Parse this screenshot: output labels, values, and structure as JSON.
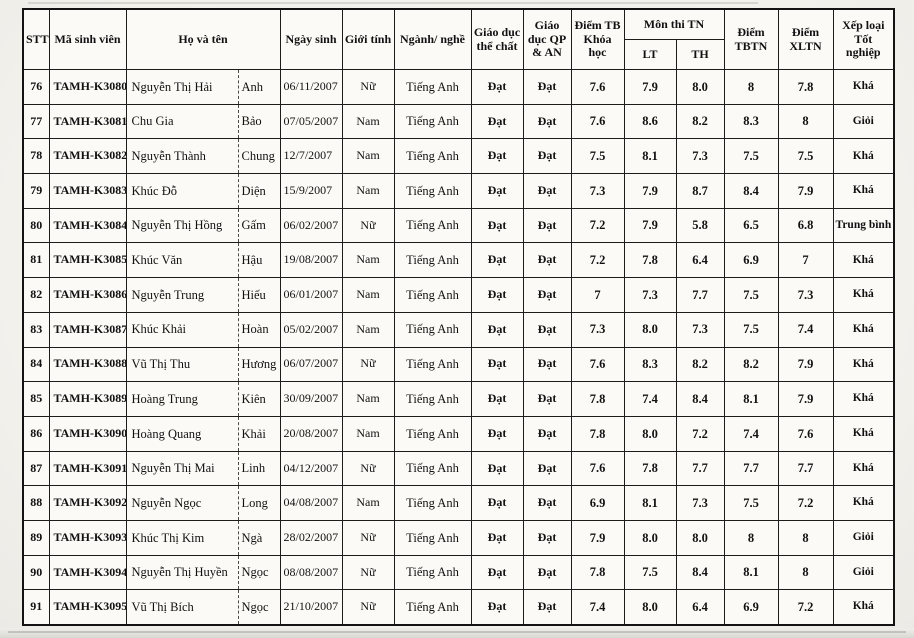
{
  "table": {
    "headers": {
      "stt": "STT",
      "ma_sinh_vien": "Mã sinh viên",
      "ho_va_ten": "Họ và tên",
      "ngay_sinh": "Ngày sinh",
      "gioi_tinh": "Giới tính",
      "nganh_nghe": "Ngành/ nghề",
      "giao_duc_the_chat": "Giáo dục thể chất",
      "giao_duc_qp_an": "Giáo dục QP & AN",
      "diem_tb_khoa_hoc": "Điểm TB Khóa học",
      "mon_thi_tn": "Môn thi TN",
      "lt": "LT",
      "th": "TH",
      "diem_tbtn": "Điểm TBTN",
      "diem_xltn": "Điểm XLTN",
      "xep_loai_tot_nghiep": "Xếp loại Tốt nghiệp"
    },
    "rows": [
      {
        "stt": "76",
        "code": "TAMH-K3080",
        "family": "Nguyễn Thị Hải",
        "given": "Anh",
        "dob": "06/11/2007",
        "gender": "Nữ",
        "major": "Tiếng Anh",
        "pe": "Đạt",
        "defense": "Đạt",
        "gpa": "7.6",
        "lt": "7.9",
        "th": "8.0",
        "tbtn": "8",
        "xltn": "7.8",
        "rank": "Khá"
      },
      {
        "stt": "77",
        "code": "TAMH-K3081",
        "family": "Chu Gia",
        "given": "Bảo",
        "dob": "07/05/2007",
        "gender": "Nam",
        "major": "Tiếng Anh",
        "pe": "Đạt",
        "defense": "Đạt",
        "gpa": "7.6",
        "lt": "8.6",
        "th": "8.2",
        "tbtn": "8.3",
        "xltn": "8",
        "rank": "Giỏi"
      },
      {
        "stt": "78",
        "code": "TAMH-K3082",
        "family": "Nguyễn Thành",
        "given": "Chung",
        "dob": "12/7/2007",
        "gender": "Nam",
        "major": "Tiếng Anh",
        "pe": "Đạt",
        "defense": "Đạt",
        "gpa": "7.5",
        "lt": "8.1",
        "th": "7.3",
        "tbtn": "7.5",
        "xltn": "7.5",
        "rank": "Khá"
      },
      {
        "stt": "79",
        "code": "TAMH-K3083",
        "family": "Khúc Đỗ",
        "given": "Diện",
        "dob": "15/9/2007",
        "gender": "Nam",
        "major": "Tiếng Anh",
        "pe": "Đạt",
        "defense": "Đạt",
        "gpa": "7.3",
        "lt": "7.9",
        "th": "8.7",
        "tbtn": "8.4",
        "xltn": "7.9",
        "rank": "Khá"
      },
      {
        "stt": "80",
        "code": "TAMH-K3084",
        "family": "Nguyễn Thị Hồng",
        "given": "Gấm",
        "dob": "06/02/2007",
        "gender": "Nữ",
        "major": "Tiếng Anh",
        "pe": "Đạt",
        "defense": "Đạt",
        "gpa": "7.2",
        "lt": "7.9",
        "th": "5.8",
        "tbtn": "6.5",
        "xltn": "6.8",
        "rank": "Trung bình"
      },
      {
        "stt": "81",
        "code": "TAMH-K3085",
        "family": "Khúc Văn",
        "given": "Hậu",
        "dob": "19/08/2007",
        "gender": "Nam",
        "major": "Tiếng Anh",
        "pe": "Đạt",
        "defense": "Đạt",
        "gpa": "7.2",
        "lt": "7.8",
        "th": "6.4",
        "tbtn": "6.9",
        "xltn": "7",
        "rank": "Khá"
      },
      {
        "stt": "82",
        "code": "TAMH-K3086",
        "family": "Nguyễn Trung",
        "given": "Hiếu",
        "dob": "06/01/2007",
        "gender": "Nam",
        "major": "Tiếng Anh",
        "pe": "Đạt",
        "defense": "Đạt",
        "gpa": "7",
        "lt": "7.3",
        "th": "7.7",
        "tbtn": "7.5",
        "xltn": "7.3",
        "rank": "Khá"
      },
      {
        "stt": "83",
        "code": "TAMH-K3087",
        "family": "Khúc Khải",
        "given": "Hoàn",
        "dob": "05/02/2007",
        "gender": "Nam",
        "major": "Tiếng Anh",
        "pe": "Đạt",
        "defense": "Đạt",
        "gpa": "7.3",
        "lt": "8.0",
        "th": "7.3",
        "tbtn": "7.5",
        "xltn": "7.4",
        "rank": "Khá"
      },
      {
        "stt": "84",
        "code": "TAMH-K3088",
        "family": "Vũ Thị Thu",
        "given": "Hương",
        "dob": "06/07/2007",
        "gender": "Nữ",
        "major": "Tiếng Anh",
        "pe": "Đạt",
        "defense": "Đạt",
        "gpa": "7.6",
        "lt": "8.3",
        "th": "8.2",
        "tbtn": "8.2",
        "xltn": "7.9",
        "rank": "Khá"
      },
      {
        "stt": "85",
        "code": "TAMH-K3089",
        "family": "Hoàng Trung",
        "given": "Kiên",
        "dob": "30/09/2007",
        "gender": "Nam",
        "major": "Tiếng Anh",
        "pe": "Đạt",
        "defense": "Đạt",
        "gpa": "7.8",
        "lt": "7.4",
        "th": "8.4",
        "tbtn": "8.1",
        "xltn": "7.9",
        "rank": "Khá"
      },
      {
        "stt": "86",
        "code": "TAMH-K3090",
        "family": "Hoàng Quang",
        "given": "Khải",
        "dob": "20/08/2007",
        "gender": "Nam",
        "major": "Tiếng Anh",
        "pe": "Đạt",
        "defense": "Đạt",
        "gpa": "7.8",
        "lt": "8.0",
        "th": "7.2",
        "tbtn": "7.4",
        "xltn": "7.6",
        "rank": "Khá"
      },
      {
        "stt": "87",
        "code": "TAMH-K3091",
        "family": "Nguyễn Thị Mai",
        "given": "Linh",
        "dob": "04/12/2007",
        "gender": "Nữ",
        "major": "Tiếng Anh",
        "pe": "Đạt",
        "defense": "Đạt",
        "gpa": "7.6",
        "lt": "7.8",
        "th": "7.7",
        "tbtn": "7.7",
        "xltn": "7.7",
        "rank": "Khá"
      },
      {
        "stt": "88",
        "code": "TAMH-K3092",
        "family": "Nguyễn Ngọc",
        "given": "Long",
        "dob": "04/08/2007",
        "gender": "Nam",
        "major": "Tiếng Anh",
        "pe": "Đạt",
        "defense": "Đạt",
        "gpa": "6.9",
        "lt": "8.1",
        "th": "7.3",
        "tbtn": "7.5",
        "xltn": "7.2",
        "rank": "Khá"
      },
      {
        "stt": "89",
        "code": "TAMH-K3093",
        "family": "Khúc Thị Kim",
        "given": "Ngà",
        "dob": "28/02/2007",
        "gender": "Nữ",
        "major": "Tiếng Anh",
        "pe": "Đạt",
        "defense": "Đạt",
        "gpa": "7.9",
        "lt": "8.0",
        "th": "8.0",
        "tbtn": "8",
        "xltn": "8",
        "rank": "Giỏi"
      },
      {
        "stt": "90",
        "code": "TAMH-K3094",
        "family": "Nguyễn Thị Huyền",
        "given": "Ngọc",
        "dob": "08/08/2007",
        "gender": "Nữ",
        "major": "Tiếng Anh",
        "pe": "Đạt",
        "defense": "Đạt",
        "gpa": "7.8",
        "lt": "7.5",
        "th": "8.4",
        "tbtn": "8.1",
        "xltn": "8",
        "rank": "Giỏi"
      },
      {
        "stt": "91",
        "code": "TAMH-K3095",
        "family": "Vũ Thị Bích",
        "given": "Ngọc",
        "dob": "21/10/2007",
        "gender": "Nữ",
        "major": "Tiếng Anh",
        "pe": "Đạt",
        "defense": "Đạt",
        "gpa": "7.4",
        "lt": "8.0",
        "th": "6.4",
        "tbtn": "6.9",
        "xltn": "7.2",
        "rank": "Khá"
      }
    ]
  }
}
